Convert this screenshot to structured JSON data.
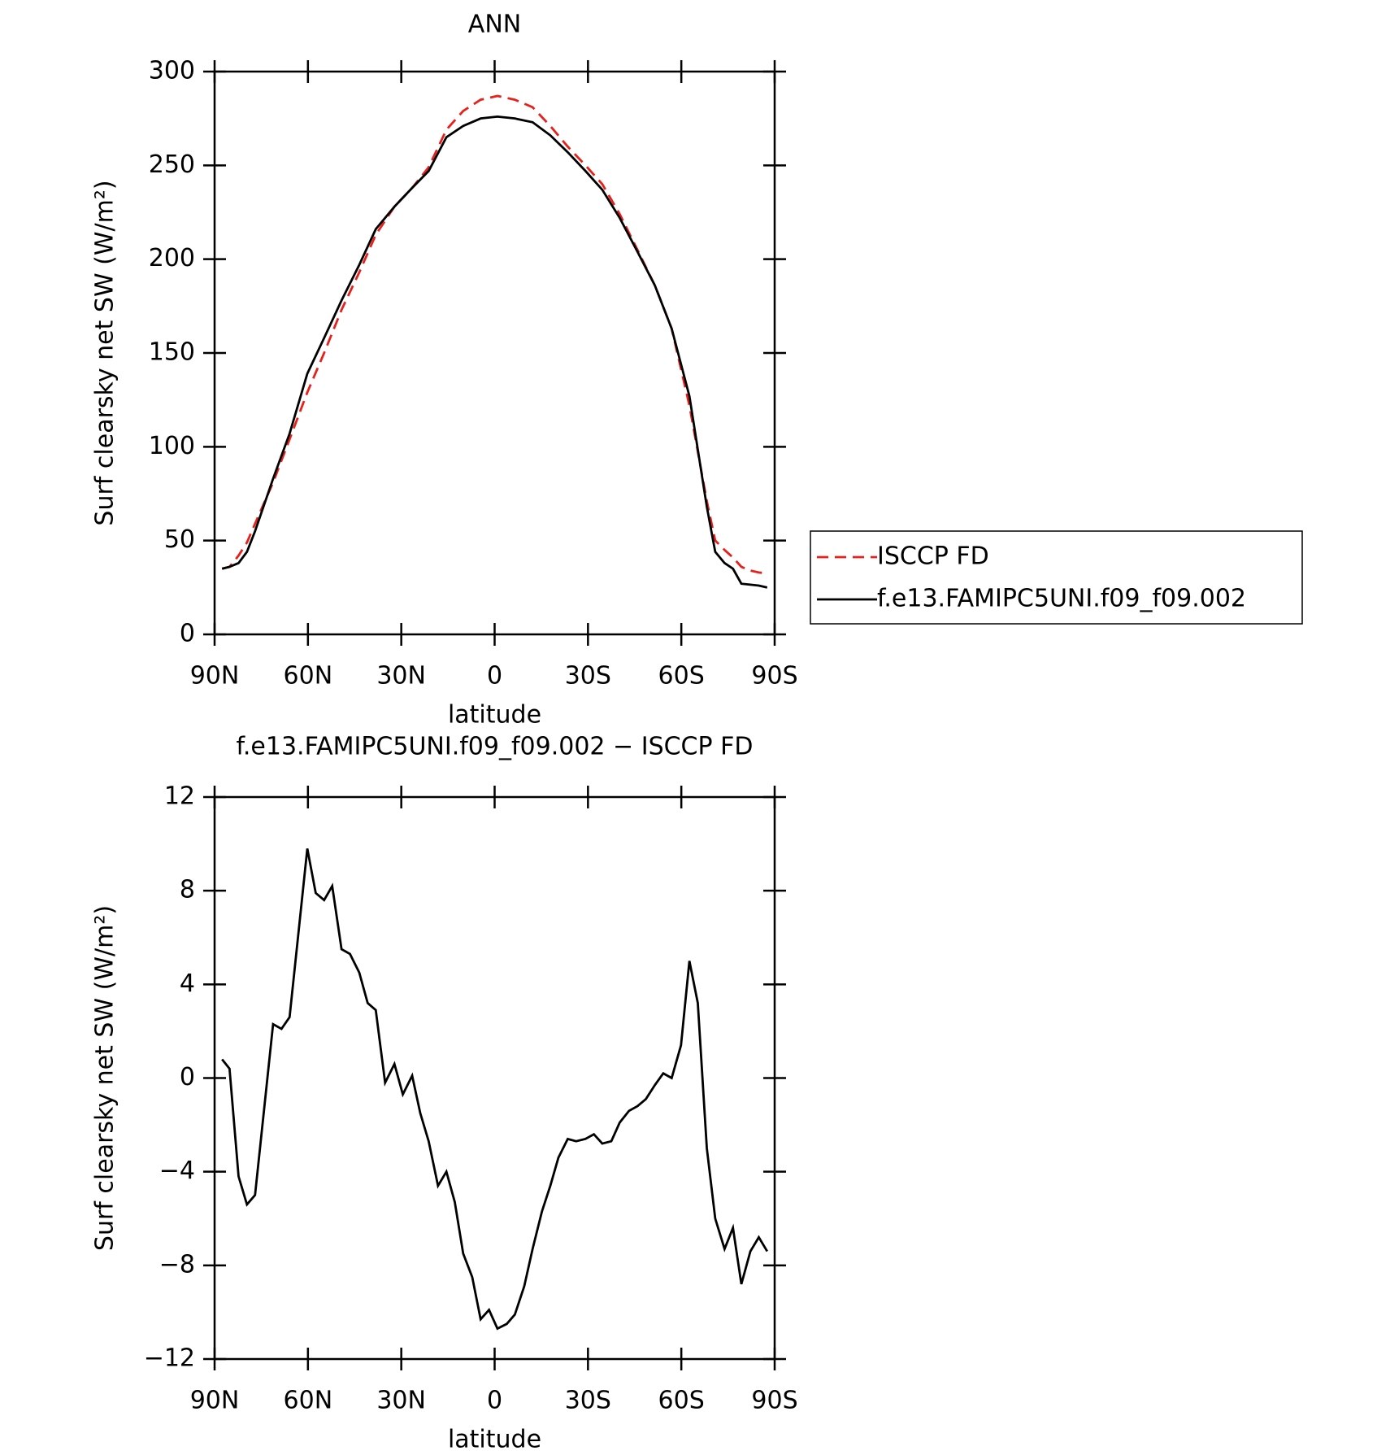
{
  "chart_data": [
    {
      "type": "line",
      "title": "ANN",
      "xlabel": "latitude",
      "ylabel": "Surf clearsky net SW (W/m²)",
      "x": [
        87.6,
        85.2,
        82.3,
        79.6,
        77,
        71.2,
        65.9,
        60.2,
        54.8,
        49.2,
        43.5,
        38.2,
        32.2,
        26.5,
        21.2,
        15.5,
        10.1,
        4.5,
        -0.9,
        -6.5,
        -12.2,
        -17.9,
        -23.5,
        -29.2,
        -34.6,
        -40.2,
        -45.9,
        -51.5,
        -56.9,
        -62.6,
        -68.2,
        -70.9,
        -73.9,
        -76.6,
        -79.3,
        -82.2,
        -84.9,
        -87.6
      ],
      "series": [
        {
          "name": "ISCCP FD",
          "color": "#e8201c",
          "dash": true,
          "values": [
            35,
            36,
            42,
            49,
            59,
            81,
            104,
            129,
            150,
            173,
            193,
            213,
            228,
            238,
            249,
            269,
            279,
            285,
            287,
            285,
            281,
            271,
            260,
            250,
            240,
            224,
            205,
            186,
            163,
            122,
            71,
            50,
            45,
            41,
            36,
            34,
            33,
            32.5
          ]
        },
        {
          "name": "f.e13.FAMIPC5UNI.f09_f09.002",
          "color": "#000000",
          "dash": false,
          "values": [
            35,
            36,
            38,
            44,
            55,
            83,
            107,
            139,
            158,
            178,
            197,
            216,
            228,
            238,
            247,
            265,
            271,
            275,
            276,
            275,
            273,
            266,
            257,
            247,
            237,
            222,
            204,
            186,
            163,
            127,
            68,
            44,
            38,
            35,
            27,
            26.5,
            26,
            25
          ]
        }
      ],
      "xlim": [
        90,
        -90
      ],
      "xticks": [
        {
          "value": 90,
          "label": "90N"
        },
        {
          "value": 60,
          "label": "60N"
        },
        {
          "value": 30,
          "label": "30N"
        },
        0,
        {
          "value": -30,
          "label": "30S"
        },
        {
          "value": -60,
          "label": "60S"
        },
        {
          "value": -90,
          "label": "90S"
        }
      ],
      "ylim": [
        0,
        300
      ],
      "yticks": [
        0,
        50,
        100,
        150,
        200,
        250,
        300
      ],
      "legend": "right"
    },
    {
      "type": "line",
      "title": "f.e13.FAMIPC5UNI.f09_f09.002 − ISCCP FD",
      "xlabel": "latitude",
      "ylabel": "Surf clearsky net SW (W/m²)",
      "x": [
        87.6,
        85.2,
        82.3,
        79.6,
        77,
        71.2,
        68.5,
        65.9,
        60.2,
        57.5,
        54.8,
        52.2,
        49.2,
        46.5,
        43.5,
        40.8,
        38.2,
        35.2,
        32.2,
        29.5,
        26.5,
        23.9,
        21.2,
        18.2,
        15.5,
        12.8,
        10.1,
        7.2,
        4.5,
        1.8,
        -0.9,
        -3.9,
        -6.5,
        -9.5,
        -12.2,
        -15.2,
        -17.9,
        -20.5,
        -23.5,
        -26.2,
        -29.2,
        -31.9,
        -34.6,
        -37.5,
        -40.2,
        -43.2,
        -45.9,
        -48.6,
        -51.5,
        -54.2,
        -56.9,
        -59.9,
        -62.6,
        -65.3,
        -68.2,
        -70.9,
        -73.9,
        -76.6,
        -79.3,
        -82.2,
        -84.9,
        -87.6
      ],
      "color": "#000000",
      "values": [
        0.8,
        0.4,
        -4.2,
        -5.4,
        -5.0,
        2.3,
        2.1,
        2.6,
        9.8,
        7.9,
        7.6,
        8.2,
        5.5,
        5.3,
        4.5,
        3.2,
        2.9,
        -0.2,
        0.6,
        -0.7,
        0.1,
        -1.5,
        -2.7,
        -4.6,
        -4.0,
        -5.3,
        -7.5,
        -8.5,
        -10.3,
        -9.9,
        -10.7,
        -10.5,
        -10.1,
        -8.9,
        -7.3,
        -5.7,
        -4.6,
        -3.4,
        -2.6,
        -2.7,
        -2.6,
        -2.4,
        -2.8,
        -2.7,
        -1.9,
        -1.4,
        -1.2,
        -0.9,
        -0.3,
        0.2,
        0.0,
        1.4,
        5.0,
        3.2,
        -3.0,
        -6.0,
        -7.3,
        -6.4,
        -8.8,
        -7.4,
        -6.8,
        -7.4
      ],
      "xlim": [
        90,
        -90
      ],
      "xticks": [
        {
          "value": 90,
          "label": "90N"
        },
        {
          "value": 60,
          "label": "60N"
        },
        {
          "value": 30,
          "label": "30N"
        },
        0,
        {
          "value": -30,
          "label": "30S"
        },
        {
          "value": -60,
          "label": "60S"
        },
        {
          "value": -90,
          "label": "90S"
        }
      ],
      "ylim": [
        -12,
        12
      ],
      "yticks": [
        {
          "value": -12,
          "label": "−12"
        },
        {
          "value": -8,
          "label": "−8"
        },
        {
          "value": -4,
          "label": "−4"
        },
        0,
        4,
        8,
        12
      ]
    }
  ]
}
